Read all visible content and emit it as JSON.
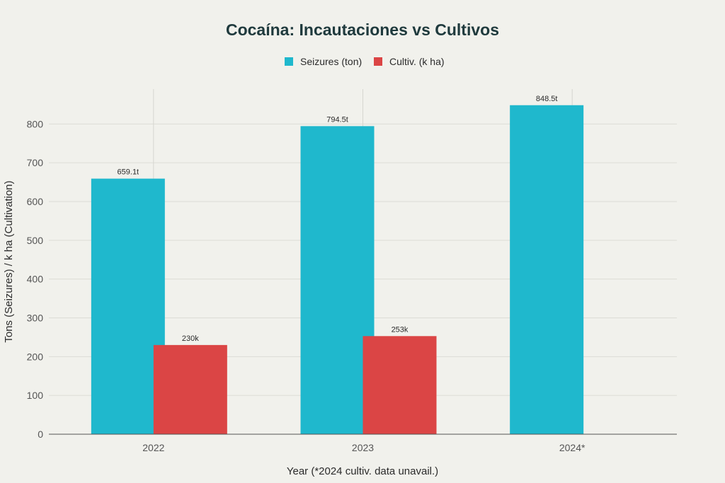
{
  "chart_data": {
    "type": "bar",
    "title": "Cocaína: Incautaciones vs Cultivos",
    "xlabel": "Year (*2024 cultiv. data unavail.)",
    "ylabel": "Tons (Seizures) / k ha (Cultivation)",
    "categories": [
      "2022",
      "2023",
      "2024*"
    ],
    "ylim": [
      0,
      890
    ],
    "yticks": [
      0,
      100,
      200,
      300,
      400,
      500,
      600,
      700,
      800
    ],
    "grid": true,
    "legend_position": "top-center",
    "series": [
      {
        "name": "Seizures (ton)",
        "color": "#1fb8cd",
        "values": [
          659.1,
          794.5,
          848.5
        ],
        "labels": [
          "659.1t",
          "794.5t",
          "848.5t"
        ]
      },
      {
        "name": "Cultiv. (k ha)",
        "color": "#db4545",
        "values": [
          230,
          253,
          null
        ],
        "labels": [
          "230k",
          "253k",
          ""
        ]
      }
    ]
  }
}
